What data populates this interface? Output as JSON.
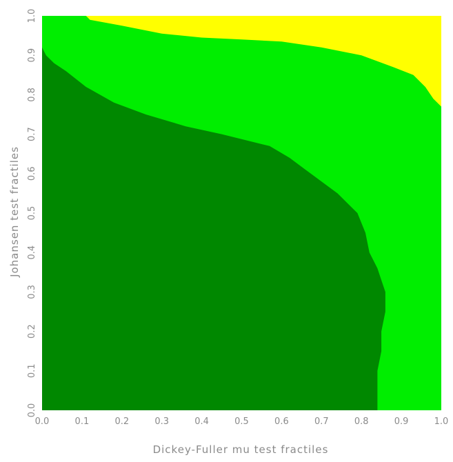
{
  "chart_data": {
    "type": "heatmap",
    "title": "",
    "xlabel": "Dickey-Fuller mu test fractiles",
    "ylabel": "Johansen test fractiles",
    "xlim": [
      0.0,
      1.0
    ],
    "ylim": [
      0.0,
      1.0
    ],
    "grid": false,
    "xticks": [
      "0.0",
      "0.1",
      "0.2",
      "0.3",
      "0.4",
      "0.5",
      "0.6",
      "0.7",
      "0.8",
      "0.9",
      "1.0"
    ],
    "yticks": [
      "0.0",
      "0.1",
      "0.2",
      "0.3",
      "0.4",
      "0.5",
      "0.6",
      "0.7",
      "0.8",
      "0.9",
      "1.0"
    ],
    "regions": [
      {
        "color": "#ffff00",
        "lower_boundary": {
          "x": [
            0.0,
            0.11,
            0.12,
            0.2,
            0.3,
            0.4,
            0.5,
            0.6,
            0.7,
            0.8,
            0.88,
            0.93,
            0.96,
            0.98,
            1.0
          ],
          "y": [
            1.0,
            1.0,
            0.99,
            0.975,
            0.955,
            0.945,
            0.94,
            0.935,
            0.92,
            0.9,
            0.87,
            0.85,
            0.82,
            0.79,
            0.77
          ]
        }
      },
      {
        "color": "#00ee00"
      },
      {
        "color": "#008800",
        "upper_boundary": {
          "y": [
            0.0,
            0.05,
            0.1,
            0.15,
            0.2,
            0.25,
            0.3,
            0.33,
            0.36,
            0.4,
            0.45,
            0.5,
            0.55,
            0.58,
            0.61,
            0.64,
            0.67,
            0.7,
            0.72,
            0.75,
            0.78,
            0.82,
            0.86,
            0.88,
            0.9,
            0.92
          ],
          "x": [
            0.84,
            0.84,
            0.84,
            0.85,
            0.85,
            0.86,
            0.86,
            0.85,
            0.84,
            0.82,
            0.81,
            0.79,
            0.74,
            0.7,
            0.66,
            0.62,
            0.57,
            0.45,
            0.36,
            0.26,
            0.18,
            0.11,
            0.06,
            0.03,
            0.01,
            0.0
          ]
        }
      }
    ]
  }
}
